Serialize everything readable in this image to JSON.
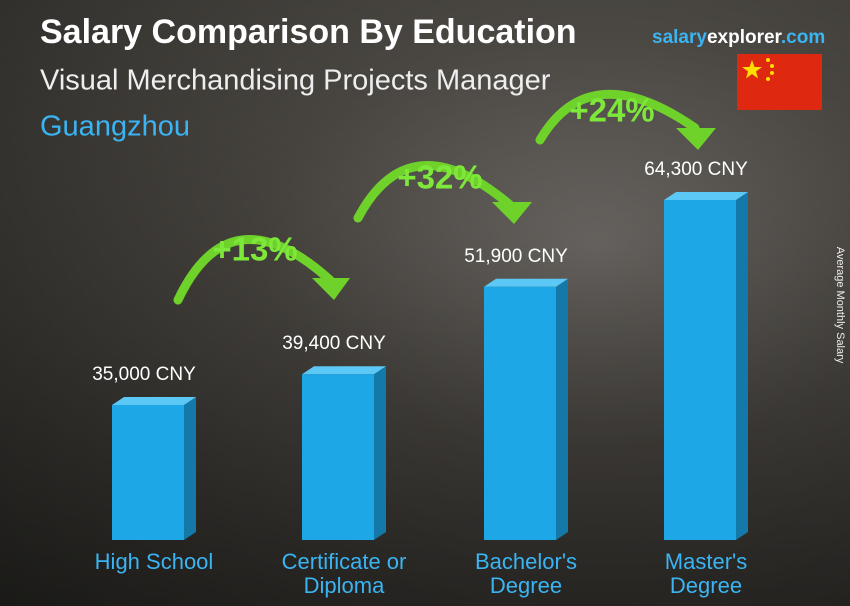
{
  "chart_data": {
    "type": "bar",
    "title": "Salary Comparison By Education",
    "subtitle": "Visual Merchandising Projects Manager",
    "location": "Guangzhou",
    "brand": [
      "salary",
      "explorer",
      ".com"
    ],
    "y_axis_label": "Average Monthly Salary",
    "categories": [
      "High School",
      "Certificate or Diploma",
      "Bachelor's Degree",
      "Master's Degree"
    ],
    "values": [
      35000,
      39400,
      51900,
      64300
    ],
    "value_labels": [
      "35,000 CNY",
      "39,400 CNY",
      "51,900 CNY",
      "64,300 CNY"
    ],
    "annotations": [
      "+13%",
      "+32%",
      "+24%"
    ],
    "color": "#1ea7e6"
  }
}
